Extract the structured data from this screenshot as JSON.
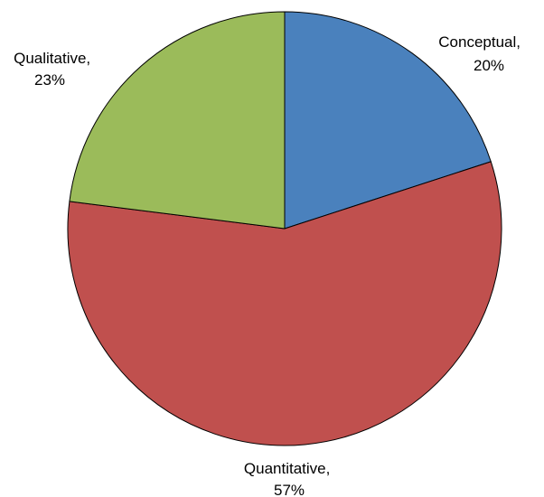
{
  "chart_data": {
    "type": "pie",
    "title": "",
    "categories": [
      "Conceptual",
      "Quantitative",
      "Qualitative"
    ],
    "values": [
      20,
      57,
      23
    ],
    "labels": [
      {
        "line1": "Conceptual,",
        "line2": "20%"
      },
      {
        "line1": "Quantitative,",
        "line2": "57%"
      },
      {
        "line1": "Qualitative,",
        "line2": "23%"
      }
    ],
    "colors": [
      "#4a81bd",
      "#c0504e",
      "#9bbb5a"
    ],
    "legend": "none",
    "start_angle": "12 o'clock",
    "direction": "clockwise"
  }
}
